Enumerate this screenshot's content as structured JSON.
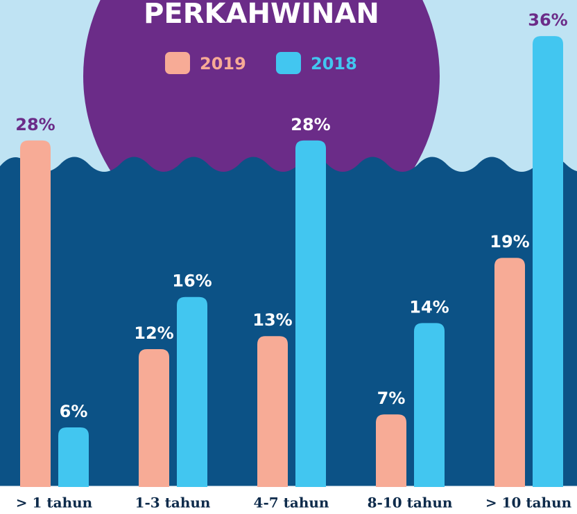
{
  "chart_data": {
    "type": "bar",
    "title": "PERKAHWINAN",
    "categories": [
      "> 1 tahun",
      "1-3 tahun",
      "4-7 tahun",
      "8-10 tahun",
      "> 10 tahun"
    ],
    "series": [
      {
        "name": "2019",
        "color": "#f7ab96",
        "values": [
          28,
          12,
          13,
          7,
          19
        ],
        "value_labels": [
          "28%",
          "12%",
          "13%",
          "7%",
          "19%"
        ]
      },
      {
        "name": "2018",
        "color": "#42c6f0",
        "values": [
          6,
          16,
          28,
          14,
          36
        ],
        "value_labels": [
          "6%",
          "16%",
          "28%",
          "14%",
          "36%"
        ]
      }
    ]
  }
}
